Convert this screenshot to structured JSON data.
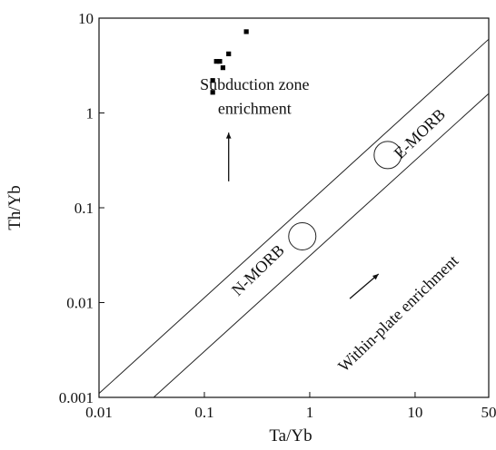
{
  "chart_data": {
    "type": "scatter",
    "title": "",
    "xlabel": "Ta/Yb",
    "ylabel": "Th/Yb",
    "xscale": "log",
    "yscale": "log",
    "xlim": [
      0.01,
      50
    ],
    "ylim": [
      0.001,
      10
    ],
    "grid": false,
    "legend": "none",
    "x_ticks": [
      {
        "value": 0.01,
        "label": "0.01"
      },
      {
        "value": 0.1,
        "label": "0.1"
      },
      {
        "value": 1,
        "label": "1"
      },
      {
        "value": 10,
        "label": "10"
      },
      {
        "value": 50,
        "label": "50"
      }
    ],
    "y_ticks": [
      {
        "value": 0.001,
        "label": "0.001"
      },
      {
        "value": 0.01,
        "label": "0.01"
      },
      {
        "value": 0.1,
        "label": "0.1"
      },
      {
        "value": 1,
        "label": "1"
      },
      {
        "value": 10,
        "label": "10"
      }
    ],
    "series": [
      {
        "marker": "square",
        "color": "#000000",
        "points": [
          {
            "x": 0.25,
            "y": 7.2
          },
          {
            "x": 0.17,
            "y": 4.2
          },
          {
            "x": 0.13,
            "y": 3.5
          },
          {
            "x": 0.14,
            "y": 3.5
          },
          {
            "x": 0.15,
            "y": 3.0
          },
          {
            "x": 0.12,
            "y": 2.2
          },
          {
            "x": 0.12,
            "y": 1.65
          }
        ]
      }
    ],
    "reference_lines": [
      {
        "from": {
          "x": 0.01,
          "y": 0.0011
        },
        "to": {
          "x": 50,
          "y": 6.0
        }
      },
      {
        "from": {
          "x": 0.033,
          "y": 0.001
        },
        "to": {
          "x": 50,
          "y": 1.6
        }
      }
    ],
    "reference_circles": [
      {
        "label": "N-MORB",
        "x": 0.85,
        "y": 0.05
      },
      {
        "label": "E-MORB",
        "x": 5.5,
        "y": 0.36
      }
    ],
    "annotations": [
      {
        "text": "Subduction zone",
        "x": 0.3,
        "y": 1.75
      },
      {
        "text": "enrichment",
        "x": 0.3,
        "y": 0.98
      },
      {
        "text": "N-MORB",
        "x": 0.35,
        "y": 0.02,
        "angle": -44
      },
      {
        "text": "E-MORB",
        "x": 12,
        "y": 0.55,
        "angle": -44
      },
      {
        "text": "Within-plate enrichment",
        "x": 7.5,
        "y": 0.007,
        "angle": -44
      }
    ],
    "arrows": [
      {
        "from": {
          "x": 0.17,
          "y": 0.19
        },
        "to": {
          "x": 0.17,
          "y": 0.62
        }
      },
      {
        "from": {
          "x": 2.4,
          "y": 0.011
        },
        "to": {
          "x": 4.5,
          "y": 0.02
        }
      }
    ]
  }
}
